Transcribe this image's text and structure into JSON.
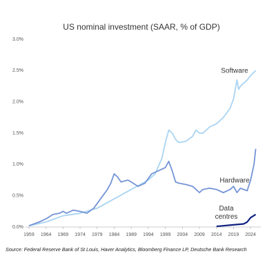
{
  "chart_data": {
    "type": "line",
    "title": "US nominal investment (SAAR, % of GDP)",
    "source": "Source: Federal Reserve Bank of St Louis, Haver Analytics, Bloomberg Finance LP, Deutsche Bank Research",
    "xlim": [
      1958,
      2027
    ],
    "xticks": [
      1959,
      1964,
      1969,
      1974,
      1979,
      1984,
      1989,
      1994,
      1999,
      2004,
      2009,
      2014,
      2019,
      2024
    ],
    "ylim": [
      0,
      3
    ],
    "yticks": [
      {
        "value": 0,
        "label": "0.0%"
      },
      {
        "value": 0.5,
        "label": "0.5%"
      },
      {
        "value": 1,
        "label": "1.0%"
      },
      {
        "value": 1.5,
        "label": "1.5%"
      },
      {
        "value": 2,
        "label": "2.0%"
      },
      {
        "value": 2.5,
        "label": "2.5%"
      },
      {
        "value": 3,
        "label": "3.0%"
      }
    ],
    "grid": false,
    "series": [
      {
        "name": "Software",
        "color": "#a9d4f2",
        "x": [
          1959,
          1964,
          1969,
          1974,
          1979,
          1984,
          1989,
          1994,
          1996,
          1998,
          1999,
          2000,
          2001,
          2002,
          2003,
          2005,
          2007,
          2008,
          2009,
          2010,
          2012,
          2014,
          2016,
          2018,
          2019,
          2020,
          2020.5,
          2021,
          2022,
          2023,
          2024,
          2025.5
        ],
        "values": [
          0.02,
          0.08,
          0.18,
          0.22,
          0.3,
          0.45,
          0.6,
          0.75,
          0.85,
          1.1,
          1.35,
          1.55,
          1.5,
          1.4,
          1.35,
          1.37,
          1.45,
          1.55,
          1.5,
          1.5,
          1.6,
          1.65,
          1.75,
          1.9,
          2.05,
          2.35,
          2.2,
          2.25,
          2.3,
          2.35,
          2.42,
          2.5
        ]
      },
      {
        "name": "Hardware",
        "color": "#7393d6",
        "x": [
          1959,
          1962,
          1964,
          1966,
          1968,
          1969,
          1970,
          1972,
          1974,
          1976,
          1978,
          1980,
          1982,
          1983,
          1984,
          1985,
          1986,
          1988,
          1989,
          1991,
          1993,
          1995,
          1997,
          1999,
          2000,
          2001,
          2002,
          2003,
          2005,
          2007,
          2009,
          2010,
          2012,
          2014,
          2016,
          2018,
          2019,
          2020,
          2021,
          2022,
          2023,
          2024,
          2025,
          2025.5
        ],
        "values": [
          0.02,
          0.08,
          0.13,
          0.2,
          0.22,
          0.25,
          0.22,
          0.27,
          0.25,
          0.22,
          0.3,
          0.45,
          0.6,
          0.7,
          0.85,
          0.8,
          0.72,
          0.75,
          0.72,
          0.65,
          0.7,
          0.85,
          0.9,
          0.95,
          1.05,
          0.9,
          0.72,
          0.7,
          0.68,
          0.65,
          0.55,
          0.6,
          0.62,
          0.6,
          0.55,
          0.6,
          0.65,
          0.55,
          0.62,
          0.6,
          0.58,
          0.75,
          1.0,
          1.25
        ]
      },
      {
        "name": "Data centres",
        "color": "#0f2080",
        "x": [
          2014,
          2016,
          2018,
          2020,
          2022,
          2023,
          2024,
          2025.5
        ],
        "values": [
          0.01,
          0.02,
          0.03,
          0.04,
          0.05,
          0.08,
          0.15,
          0.2
        ]
      }
    ]
  }
}
